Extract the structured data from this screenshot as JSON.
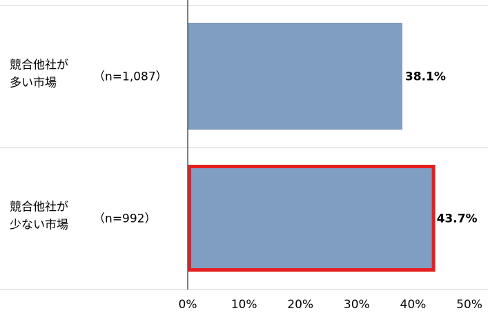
{
  "chart_data": {
    "type": "bar",
    "orientation": "horizontal",
    "categories": [
      {
        "label_lines": [
          "競合他社が",
          "多い市場"
        ],
        "n_label": "（n=1,087）"
      },
      {
        "label_lines": [
          "競合他社が",
          "少ない市場"
        ],
        "n_label": "（n=992）"
      }
    ],
    "values": [
      38.1,
      43.7
    ],
    "value_labels": [
      "38.1%",
      "43.7%"
    ],
    "highlighted_index": 1,
    "xlim": [
      0,
      50
    ],
    "x_ticks": [
      0,
      10,
      20,
      30,
      40,
      50
    ],
    "x_tick_labels": [
      "0%",
      "10%",
      "20%",
      "30%",
      "40%",
      "50%"
    ],
    "grid": false,
    "legend": "none",
    "bar_color": "#7f9ec2",
    "highlight_color": "#e51f1f",
    "separator_color": "#cfcfcf",
    "axis_color": "#555555"
  }
}
